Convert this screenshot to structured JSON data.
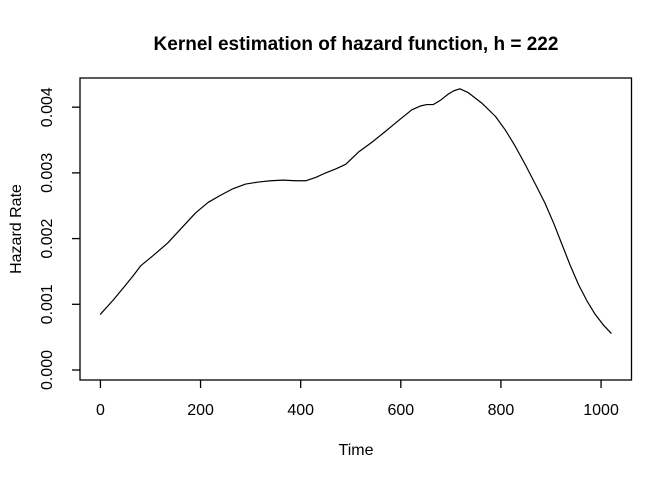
{
  "window": {
    "background_color": "#ffffff",
    "foreground_color": "#000000"
  },
  "chart_data": {
    "type": "line",
    "title": "Kernel estimation of hazard function, h = 222",
    "xlabel": "Time",
    "ylabel": "Hazard Rate",
    "x_ticks": [
      0,
      200,
      400,
      600,
      800,
      1000
    ],
    "y_ticks": [
      "0.000",
      "0.001",
      "0.002",
      "0.003",
      "0.004"
    ],
    "xlim": [
      -40.8,
      1060.8
    ],
    "ylim": [
      -0.000152,
      0.004444
    ],
    "grid": false,
    "legend": null,
    "line_color": "#000000",
    "series": [
      {
        "name": "kernel-hazard-estimate",
        "points": [
          [
            0,
            0.00085
          ],
          [
            25,
            0.00106
          ],
          [
            50,
            0.00129
          ],
          [
            65,
            0.00143
          ],
          [
            81,
            0.00159
          ],
          [
            105,
            0.00174
          ],
          [
            134,
            0.00193
          ],
          [
            162,
            0.00216
          ],
          [
            190,
            0.00239
          ],
          [
            215,
            0.00255
          ],
          [
            240,
            0.00266
          ],
          [
            265,
            0.00276
          ],
          [
            290,
            0.00283
          ],
          [
            315,
            0.00286
          ],
          [
            340,
            0.00288
          ],
          [
            365,
            0.00289
          ],
          [
            390,
            0.00288
          ],
          [
            410,
            0.00288
          ],
          [
            430,
            0.00293
          ],
          [
            450,
            0.003
          ],
          [
            470,
            0.00306
          ],
          [
            490,
            0.00313
          ],
          [
            516,
            0.00332
          ],
          [
            543,
            0.00347
          ],
          [
            569,
            0.00363
          ],
          [
            596,
            0.0038
          ],
          [
            622,
            0.00396
          ],
          [
            640,
            0.00402
          ],
          [
            652,
            0.00404
          ],
          [
            665,
            0.00404
          ],
          [
            680,
            0.00411
          ],
          [
            695,
            0.0042
          ],
          [
            706,
            0.00425
          ],
          [
            718,
            0.00428
          ],
          [
            735,
            0.00422
          ],
          [
            762,
            0.00406
          ],
          [
            789,
            0.00386
          ],
          [
            809,
            0.00365
          ],
          [
            829,
            0.0034
          ],
          [
            849,
            0.00312
          ],
          [
            868,
            0.00284
          ],
          [
            888,
            0.00254
          ],
          [
            905,
            0.00224
          ],
          [
            922,
            0.00191
          ],
          [
            938,
            0.0016
          ],
          [
            955,
            0.0013
          ],
          [
            972,
            0.00105
          ],
          [
            988,
            0.00085
          ],
          [
            1004,
            0.00069
          ],
          [
            1020,
            0.00056
          ]
        ]
      }
    ]
  }
}
